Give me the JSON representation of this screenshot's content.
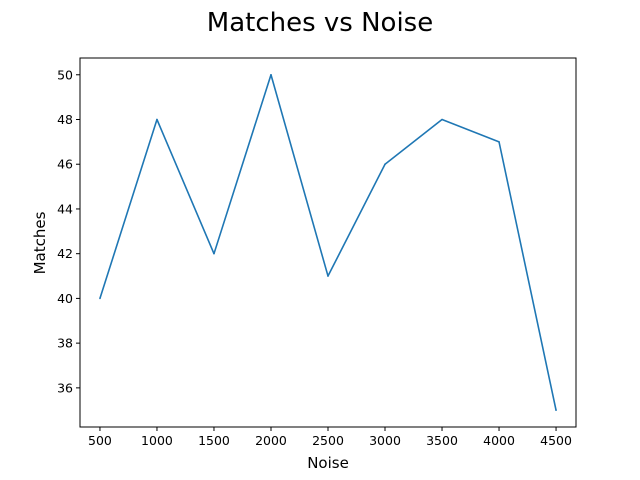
{
  "chart_data": {
    "type": "line",
    "title": "Matches vs Noise",
    "xlabel": "Noise",
    "ylabel": "Matches",
    "x": [
      500,
      1000,
      1500,
      2000,
      2500,
      3000,
      3500,
      4000,
      4500
    ],
    "series": [
      {
        "values": [
          40,
          48,
          42,
          50,
          41,
          46,
          48,
          47,
          35
        ],
        "color": "#1f77b4"
      }
    ],
    "xlim": [
      325,
      4675
    ],
    "ylim": [
      34.25,
      50.75
    ],
    "xticks": [
      500,
      1000,
      1500,
      2000,
      2500,
      3000,
      3500,
      4000,
      4500
    ],
    "yticks": [
      36,
      38,
      40,
      42,
      44,
      46,
      48,
      50
    ],
    "grid": false,
    "legend": "none"
  }
}
